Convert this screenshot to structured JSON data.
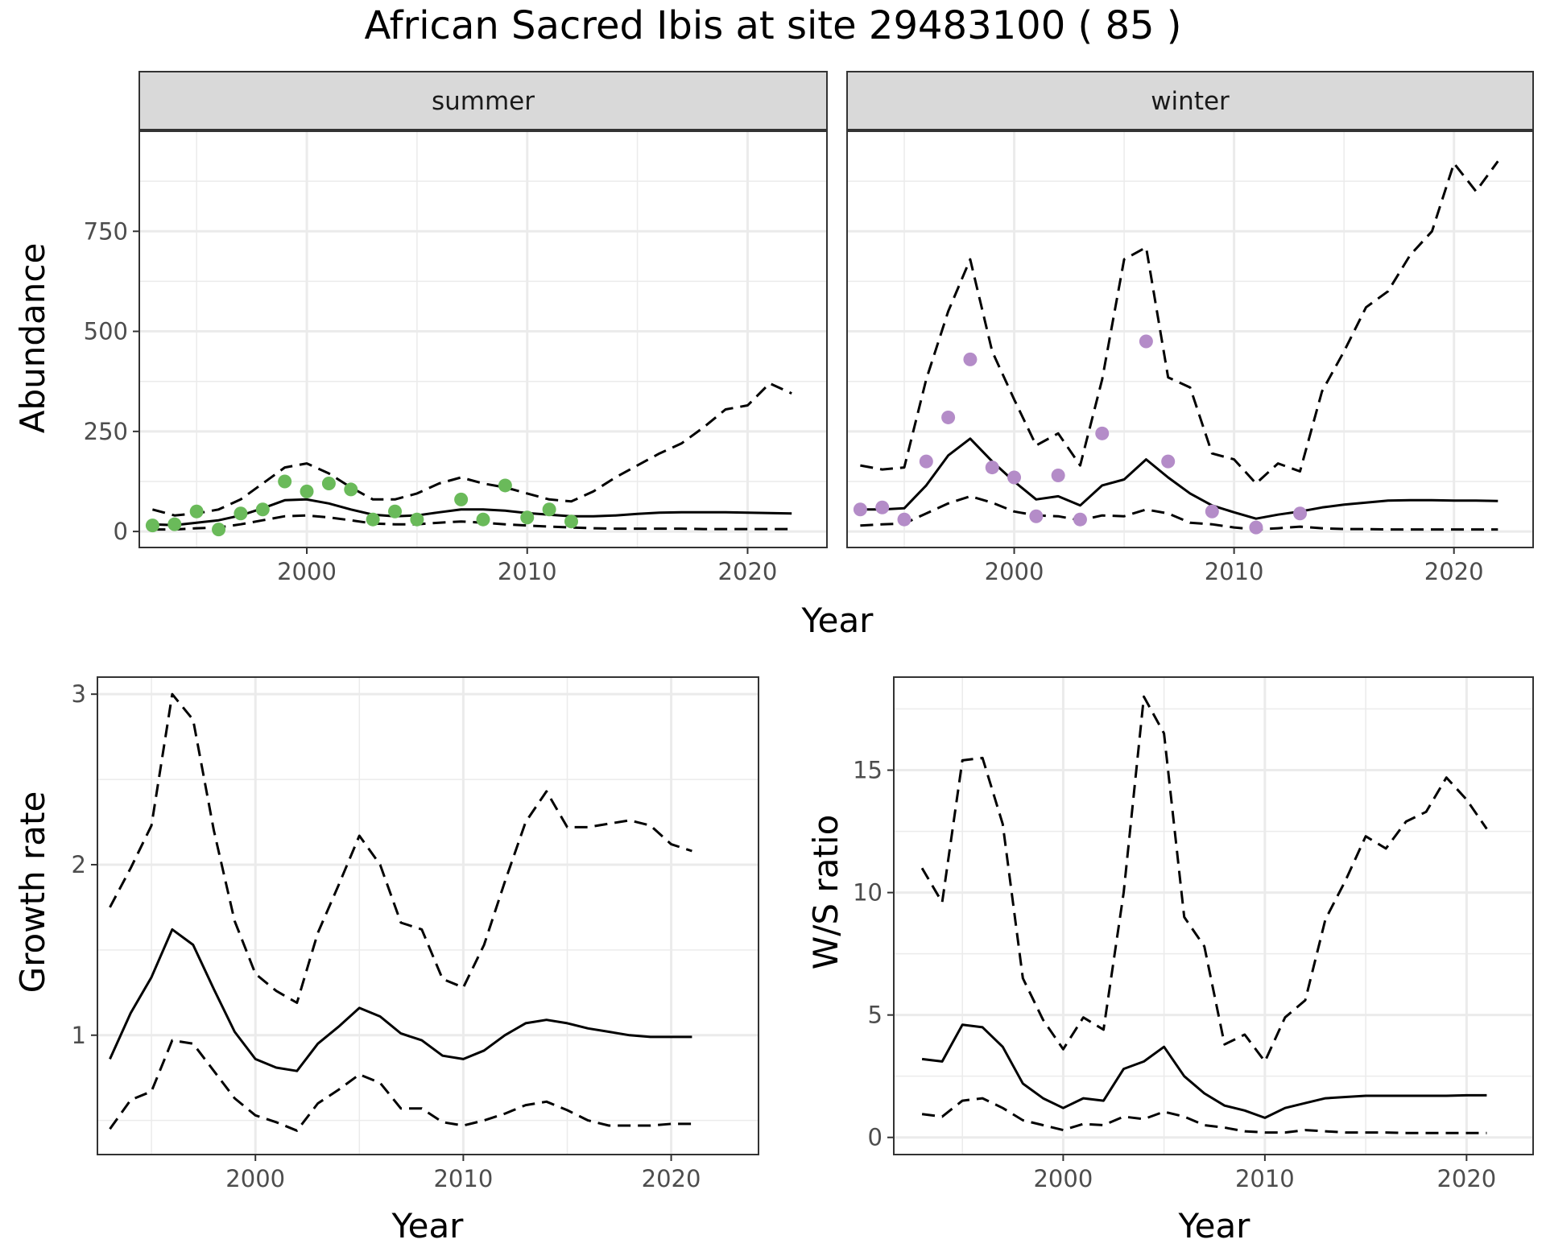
{
  "title": "African Sacred Ibis at site 29483100 ( 85 )",
  "colors": {
    "summer_points": "#6aba5a",
    "winter_points": "#b48cc8",
    "lines": "#000000",
    "grid": "#ebebeb",
    "strip_fill": "#d9d9d9"
  },
  "chart_data": [
    {
      "type": "line",
      "panel": "summer",
      "strip": "summer",
      "xlabel": "Year",
      "ylabel": "Abundance",
      "xlim": [
        1992.4,
        2023.6
      ],
      "ylim": [
        -40,
        1000
      ],
      "x_ticks": [
        2000,
        2010,
        2020
      ],
      "y_ticks": [
        0,
        250,
        500,
        750
      ],
      "grid": true,
      "series": [
        {
          "role": "mean",
          "style": "solid",
          "x": [
            1993,
            1994,
            1995,
            1996,
            1997,
            1998,
            1999,
            2000,
            2001,
            2002,
            2003,
            2004,
            2005,
            2006,
            2007,
            2008,
            2009,
            2010,
            2011,
            2012,
            2013,
            2014,
            2015,
            2016,
            2017,
            2018,
            2019,
            2020,
            2021,
            2022
          ],
          "y": [
            18,
            16,
            22,
            28,
            40,
            58,
            78,
            80,
            70,
            55,
            42,
            38,
            40,
            48,
            55,
            55,
            52,
            46,
            42,
            38,
            38,
            40,
            44,
            47,
            48,
            48,
            48,
            47,
            46,
            45
          ]
        },
        {
          "role": "upper",
          "style": "dashed",
          "x": [
            1993,
            1994,
            1995,
            1996,
            1997,
            1998,
            1999,
            2000,
            2001,
            2002,
            2003,
            2004,
            2005,
            2006,
            2007,
            2008,
            2009,
            2010,
            2011,
            2012,
            2013,
            2014,
            2015,
            2016,
            2017,
            2018,
            2019,
            2020,
            2021,
            2022
          ],
          "y": [
            55,
            40,
            45,
            55,
            80,
            120,
            160,
            170,
            145,
            110,
            80,
            80,
            95,
            120,
            135,
            120,
            110,
            95,
            80,
            75,
            100,
            135,
            165,
            195,
            220,
            260,
            305,
            315,
            370,
            345
          ]
        },
        {
          "role": "lower",
          "style": "dashed",
          "x": [
            1993,
            1994,
            1995,
            1996,
            1997,
            1998,
            1999,
            2000,
            2001,
            2002,
            2003,
            2004,
            2005,
            2006,
            2007,
            2008,
            2009,
            2010,
            2011,
            2012,
            2013,
            2014,
            2015,
            2016,
            2017,
            2018,
            2019,
            2020,
            2021,
            2022
          ],
          "y": [
            5,
            5,
            8,
            10,
            18,
            28,
            38,
            40,
            35,
            28,
            20,
            18,
            18,
            22,
            25,
            22,
            18,
            15,
            12,
            10,
            8,
            7,
            7,
            7,
            7,
            6,
            6,
            6,
            6,
            6
          ]
        },
        {
          "role": "observed",
          "style": "points",
          "x": [
            1993,
            1994,
            1995,
            1996,
            1997,
            1998,
            1999,
            2000,
            2001,
            2002,
            2003,
            2004,
            2005,
            2007,
            2008,
            2009,
            2010,
            2011,
            2012
          ],
          "y": [
            15,
            18,
            50,
            5,
            45,
            55,
            125,
            100,
            120,
            105,
            30,
            50,
            30,
            80,
            30,
            115,
            35,
            55,
            25
          ]
        }
      ]
    },
    {
      "type": "line",
      "panel": "winter",
      "strip": "winter",
      "xlabel": "Year",
      "ylabel": "Abundance",
      "xlim": [
        1992.4,
        2023.6
      ],
      "ylim": [
        -40,
        1000
      ],
      "x_ticks": [
        2000,
        2010,
        2020
      ],
      "y_ticks": [
        0,
        250,
        500,
        750
      ],
      "grid": true,
      "series": [
        {
          "role": "mean",
          "style": "solid",
          "x": [
            1993,
            1994,
            1995,
            1996,
            1997,
            1998,
            1999,
            2000,
            2001,
            2002,
            2003,
            2004,
            2005,
            2006,
            2007,
            2008,
            2009,
            2010,
            2011,
            2012,
            2013,
            2014,
            2015,
            2016,
            2017,
            2018,
            2019,
            2020,
            2021,
            2022
          ],
          "y": [
            55,
            55,
            58,
            115,
            190,
            232,
            175,
            125,
            80,
            88,
            65,
            115,
            130,
            180,
            135,
            95,
            65,
            48,
            32,
            42,
            50,
            60,
            67,
            72,
            77,
            78,
            78,
            77,
            77,
            76
          ]
        },
        {
          "role": "upper",
          "style": "dashed",
          "x": [
            1993,
            1994,
            1995,
            1996,
            1997,
            1998,
            1999,
            2000,
            2001,
            2002,
            2003,
            2004,
            2005,
            2006,
            2007,
            2008,
            2009,
            2010,
            2011,
            2012,
            2013,
            2014,
            2015,
            2016,
            2017,
            2018,
            2019,
            2020,
            2021,
            2022
          ],
          "y": [
            165,
            155,
            160,
            380,
            550,
            680,
            450,
            330,
            215,
            245,
            165,
            380,
            680,
            710,
            385,
            360,
            195,
            180,
            120,
            170,
            150,
            350,
            450,
            560,
            600,
            690,
            750,
            920,
            850,
            925
          ]
        },
        {
          "role": "lower",
          "style": "dashed",
          "x": [
            1993,
            1994,
            1995,
            1996,
            1997,
            1998,
            1999,
            2000,
            2001,
            2002,
            2003,
            2004,
            2005,
            2006,
            2007,
            2008,
            2009,
            2010,
            2011,
            2012,
            2013,
            2014,
            2015,
            2016,
            2017,
            2018,
            2019,
            2020,
            2021,
            2022
          ],
          "y": [
            15,
            18,
            20,
            45,
            70,
            88,
            72,
            50,
            40,
            38,
            28,
            40,
            38,
            55,
            45,
            22,
            18,
            10,
            5,
            8,
            12,
            8,
            6,
            6,
            5,
            5,
            5,
            5,
            5,
            5
          ]
        },
        {
          "role": "observed",
          "style": "points",
          "x": [
            1993,
            1994,
            1995,
            1996,
            1997,
            1998,
            1999,
            2000,
            2001,
            2002,
            2003,
            2004,
            2006,
            2007,
            2009,
            2011,
            2013
          ],
          "y": [
            55,
            60,
            30,
            175,
            285,
            430,
            160,
            135,
            38,
            140,
            30,
            245,
            475,
            175,
            50,
            10,
            45
          ]
        }
      ]
    },
    {
      "type": "line",
      "panel": "growth",
      "xlabel": "Year",
      "ylabel": "Growth rate",
      "xlim": [
        1992.4,
        2024.2
      ],
      "ylim": [
        0.3,
        3.1
      ],
      "x_ticks": [
        2000,
        2010,
        2020
      ],
      "y_ticks": [
        1,
        2,
        3
      ],
      "grid": true,
      "series": [
        {
          "role": "mean",
          "style": "solid",
          "x": [
            1993,
            1994,
            1995,
            1996,
            1997,
            1998,
            1999,
            2000,
            2001,
            2002,
            2003,
            2004,
            2005,
            2006,
            2007,
            2008,
            2009,
            2010,
            2011,
            2012,
            2013,
            2014,
            2015,
            2016,
            2017,
            2018,
            2019,
            2020,
            2021
          ],
          "y": [
            0.86,
            1.13,
            1.34,
            1.62,
            1.53,
            1.27,
            1.02,
            0.86,
            0.81,
            0.79,
            0.95,
            1.05,
            1.16,
            1.11,
            1.01,
            0.97,
            0.88,
            0.86,
            0.91,
            1.0,
            1.07,
            1.09,
            1.07,
            1.04,
            1.02,
            1.0,
            0.99,
            0.99,
            0.99
          ]
        },
        {
          "role": "upper",
          "style": "dashed",
          "x": [
            1993,
            1994,
            1995,
            1996,
            1997,
            1998,
            1999,
            2000,
            2001,
            2002,
            2003,
            2004,
            2005,
            2006,
            2007,
            2008,
            2009,
            2010,
            2011,
            2012,
            2013,
            2014,
            2015,
            2016,
            2017,
            2018,
            2019,
            2020,
            2021
          ],
          "y": [
            1.75,
            1.98,
            2.23,
            3.0,
            2.85,
            2.2,
            1.67,
            1.36,
            1.26,
            1.19,
            1.6,
            1.88,
            2.17,
            2.0,
            1.66,
            1.62,
            1.33,
            1.28,
            1.53,
            1.9,
            2.25,
            2.43,
            2.22,
            2.22,
            2.24,
            2.26,
            2.23,
            2.12,
            2.08
          ]
        },
        {
          "role": "lower",
          "style": "dashed",
          "x": [
            1993,
            1994,
            1995,
            1996,
            1997,
            1998,
            1999,
            2000,
            2001,
            2002,
            2003,
            2004,
            2005,
            2006,
            2007,
            2008,
            2009,
            2010,
            2011,
            2012,
            2013,
            2014,
            2015,
            2016,
            2017,
            2018,
            2019,
            2020,
            2021
          ],
          "y": [
            0.45,
            0.62,
            0.67,
            0.97,
            0.95,
            0.79,
            0.63,
            0.53,
            0.49,
            0.44,
            0.6,
            0.68,
            0.77,
            0.72,
            0.57,
            0.57,
            0.49,
            0.47,
            0.5,
            0.54,
            0.59,
            0.61,
            0.56,
            0.5,
            0.47,
            0.47,
            0.47,
            0.48,
            0.48
          ]
        }
      ]
    },
    {
      "type": "line",
      "panel": "ratio",
      "xlabel": "Year",
      "ylabel": "W/S ratio",
      "xlim": [
        1991.6,
        2023.3
      ],
      "ylim": [
        -0.7,
        18.8
      ],
      "x_ticks": [
        2000,
        2010,
        2020
      ],
      "y_ticks": [
        0,
        5,
        10,
        15
      ],
      "grid": true,
      "series": [
        {
          "role": "mean",
          "style": "solid",
          "x": [
            1993,
            1994,
            1995,
            1996,
            1997,
            1998,
            1999,
            2000,
            2001,
            2002,
            2003,
            2004,
            2005,
            2006,
            2007,
            2008,
            2009,
            2010,
            2011,
            2012,
            2013,
            2014,
            2015,
            2016,
            2017,
            2018,
            2019,
            2020,
            2021
          ],
          "y": [
            3.2,
            3.1,
            4.6,
            4.5,
            3.7,
            2.2,
            1.6,
            1.2,
            1.6,
            1.5,
            2.8,
            3.1,
            3.7,
            2.5,
            1.8,
            1.3,
            1.1,
            0.8,
            1.2,
            1.4,
            1.6,
            1.65,
            1.7,
            1.7,
            1.7,
            1.7,
            1.7,
            1.72,
            1.72
          ]
        },
        {
          "role": "upper",
          "style": "dashed",
          "x": [
            1993,
            1994,
            1995,
            1996,
            1997,
            1998,
            1999,
            2000,
            2001,
            2002,
            2003,
            2004,
            2005,
            2006,
            2007,
            2008,
            2009,
            2010,
            2011,
            2012,
            2013,
            2014,
            2015,
            2016,
            2017,
            2018,
            2019,
            2020,
            2021
          ],
          "y": [
            11.0,
            9.6,
            15.4,
            15.5,
            12.8,
            6.5,
            4.8,
            3.6,
            4.9,
            4.4,
            10.0,
            18.0,
            16.5,
            9.0,
            7.8,
            3.8,
            4.2,
            3.1,
            4.9,
            5.6,
            8.9,
            10.5,
            12.3,
            11.8,
            12.9,
            13.3,
            14.7,
            13.8,
            12.6
          ]
        },
        {
          "role": "lower",
          "style": "dashed",
          "x": [
            1993,
            1994,
            1995,
            1996,
            1997,
            1998,
            1999,
            2000,
            2001,
            2002,
            2003,
            2004,
            2005,
            2006,
            2007,
            2008,
            2009,
            2010,
            2011,
            2012,
            2013,
            2014,
            2015,
            2016,
            2017,
            2018,
            2019,
            2020,
            2021
          ],
          "y": [
            0.95,
            0.85,
            1.5,
            1.6,
            1.2,
            0.7,
            0.5,
            0.3,
            0.55,
            0.5,
            0.85,
            0.75,
            1.05,
            0.85,
            0.5,
            0.4,
            0.25,
            0.2,
            0.2,
            0.3,
            0.25,
            0.2,
            0.2,
            0.2,
            0.18,
            0.18,
            0.18,
            0.18,
            0.18
          ]
        }
      ]
    }
  ]
}
